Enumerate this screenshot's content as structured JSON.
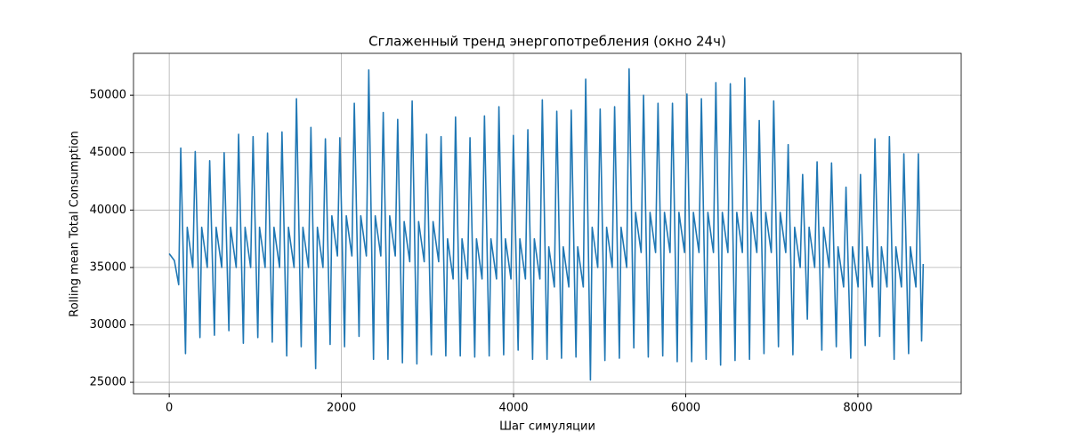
{
  "chart_data": {
    "type": "line",
    "title": "Сглаженный тренд энергопотребления (окно 24ч)",
    "xlabel": "Шаг симуляции",
    "ylabel": "Rolling mean Total Consumption",
    "xlim": [
      -415,
      9200
    ],
    "ylim": [
      24000,
      53650
    ],
    "xticks": [
      0,
      2000,
      4000,
      6000,
      8000
    ],
    "yticks": [
      25000,
      30000,
      35000,
      40000,
      45000,
      50000
    ],
    "grid": true,
    "series": [
      {
        "color": "#1f77b4",
        "x": [
          0,
          60,
          110,
          134,
          189,
          209,
          274,
          302,
          357,
          377,
          442,
          470,
          525,
          545,
          610,
          638,
          693,
          713,
          778,
          806,
          861,
          881,
          946,
          974,
          1029,
          1049,
          1114,
          1142,
          1197,
          1217,
          1282,
          1310,
          1365,
          1385,
          1450,
          1478,
          1533,
          1553,
          1618,
          1646,
          1701,
          1721,
          1786,
          1814,
          1869,
          1889,
          1954,
          1982,
          2037,
          2057,
          2122,
          2150,
          2205,
          2225,
          2290,
          2318,
          2373,
          2393,
          2458,
          2486,
          2541,
          2561,
          2626,
          2654,
          2709,
          2729,
          2794,
          2822,
          2877,
          2897,
          2962,
          2990,
          3045,
          3065,
          3130,
          3158,
          3213,
          3233,
          3298,
          3326,
          3381,
          3401,
          3466,
          3494,
          3549,
          3569,
          3634,
          3662,
          3717,
          3737,
          3802,
          3830,
          3885,
          3905,
          3970,
          3998,
          4053,
          4073,
          4138,
          4166,
          4221,
          4241,
          4306,
          4334,
          4389,
          4409,
          4474,
          4502,
          4557,
          4577,
          4642,
          4670,
          4725,
          4745,
          4810,
          4838,
          4893,
          4913,
          4978,
          5006,
          5061,
          5081,
          5146,
          5174,
          5229,
          5249,
          5314,
          5342,
          5397,
          5417,
          5482,
          5510,
          5565,
          5585,
          5650,
          5678,
          5733,
          5753,
          5818,
          5846,
          5901,
          5921,
          5986,
          6014,
          6069,
          6089,
          6154,
          6182,
          6237,
          6257,
          6322,
          6350,
          6405,
          6425,
          6490,
          6518,
          6573,
          6593,
          6658,
          6686,
          6741,
          6761,
          6826,
          6854,
          6909,
          6929,
          6994,
          7022,
          7077,
          7097,
          7162,
          7190,
          7245,
          7265,
          7330,
          7358,
          7413,
          7433,
          7498,
          7526,
          7581,
          7601,
          7666,
          7694,
          7749,
          7769,
          7834,
          7862,
          7917,
          7937,
          8002,
          8030,
          8085,
          8105,
          8170,
          8198,
          8253,
          8273,
          8338,
          8366,
          8421,
          8441,
          8506,
          8534,
          8589,
          8609,
          8674,
          8702,
          8740,
          8759
        ],
        "values": [
          36200,
          35600,
          33500,
          45400,
          27500,
          38500,
          35000,
          45100,
          28900,
          38500,
          35000,
          44300,
          29100,
          38500,
          35000,
          45000,
          29500,
          38500,
          35000,
          46600,
          28400,
          38500,
          35000,
          46400,
          28900,
          38500,
          35000,
          46700,
          28500,
          38500,
          35000,
          46800,
          27300,
          38500,
          35000,
          49700,
          28100,
          38500,
          35000,
          47200,
          26200,
          38500,
          35000,
          46200,
          28300,
          39500,
          36000,
          46300,
          28100,
          39500,
          36000,
          49300,
          29000,
          39500,
          36000,
          52200,
          27000,
          39500,
          36000,
          48500,
          27000,
          39500,
          36000,
          47900,
          26700,
          39000,
          35500,
          49500,
          26600,
          39000,
          35500,
          46600,
          27400,
          39000,
          35500,
          46400,
          27300,
          37500,
          34000,
          48100,
          27300,
          37500,
          34000,
          46300,
          27200,
          37500,
          34000,
          48200,
          27300,
          37500,
          34000,
          49000,
          27400,
          37500,
          34000,
          46500,
          27800,
          37500,
          34000,
          47000,
          27000,
          37500,
          34000,
          49600,
          27000,
          36800,
          33300,
          48600,
          27100,
          36800,
          33300,
          48700,
          27200,
          36800,
          33300,
          51400,
          25200,
          38500,
          35000,
          48800,
          26900,
          38500,
          35000,
          49000,
          27100,
          38500,
          35000,
          52300,
          28000,
          39800,
          36300,
          50000,
          27200,
          39800,
          36300,
          49300,
          27300,
          39800,
          36300,
          49300,
          26800,
          39800,
          36300,
          50100,
          26800,
          39800,
          36300,
          49700,
          27000,
          39800,
          36300,
          51100,
          26500,
          39800,
          36300,
          51000,
          26900,
          39800,
          36300,
          51500,
          27000,
          39800,
          36300,
          47800,
          27500,
          39800,
          36300,
          49500,
          28100,
          39800,
          36300,
          45700,
          27400,
          38500,
          35000,
          43100,
          30500,
          38500,
          35000,
          44200,
          27800,
          38500,
          35000,
          44100,
          28100,
          36800,
          33300,
          42000,
          27100,
          36800,
          33300,
          43100,
          28200,
          36800,
          33300,
          46200,
          29000,
          36800,
          33300,
          46400,
          27000,
          36800,
          33300,
          44900,
          27500,
          36800,
          33300,
          44900,
          28600,
          35300
        ]
      }
    ]
  }
}
